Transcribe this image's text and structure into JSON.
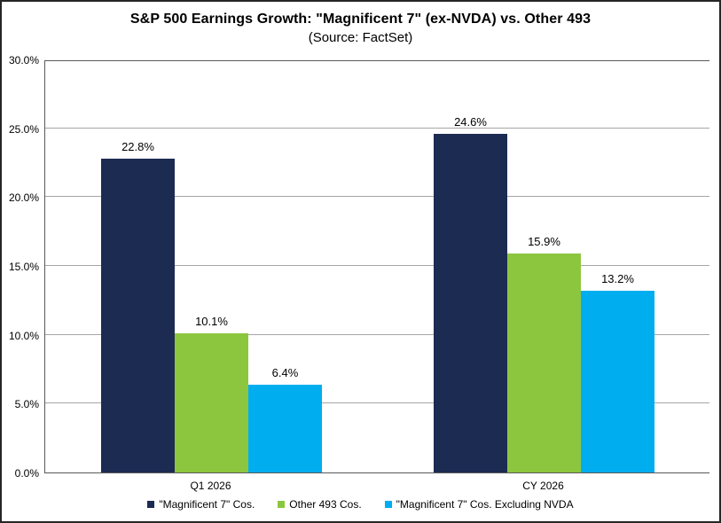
{
  "chart_data": {
    "type": "bar",
    "title": "S&P 500 Earnings Growth: \"Magnificent 7\" (ex-NVDA) vs. Other 493",
    "subtitle": "(Source: FactSet)",
    "categories": [
      "Q1 2026",
      "CY 2026"
    ],
    "series": [
      {
        "name": "\"Magnificent 7\" Cos.",
        "color": "#1C2B52",
        "values": [
          22.8,
          24.6
        ]
      },
      {
        "name": "Other 493 Cos.",
        "color": "#8CC63F",
        "values": [
          10.1,
          15.9
        ]
      },
      {
        "name": "\"Magnificent 7\" Cos. Excluding NVDA",
        "color": "#00AEEF",
        "values": [
          6.4,
          13.2
        ]
      }
    ],
    "data_labels": [
      [
        "22.8%",
        "10.1%",
        "6.4%"
      ],
      [
        "24.6%",
        "15.9%",
        "13.2%"
      ]
    ],
    "xlabel": "",
    "ylabel": "",
    "ylim": [
      0,
      30
    ],
    "ytick_step": 5,
    "ytick_labels": [
      "0.0%",
      "5.0%",
      "10.0%",
      "15.0%",
      "20.0%",
      "25.0%",
      "30.0%"
    ],
    "grid": true,
    "legend_position": "bottom"
  },
  "style": {
    "gridline_color": "#A6A6A6",
    "axis_color": "#595959",
    "frame_border_color": "#262626",
    "background": "#FFFFFF",
    "text_color": "#000000"
  }
}
